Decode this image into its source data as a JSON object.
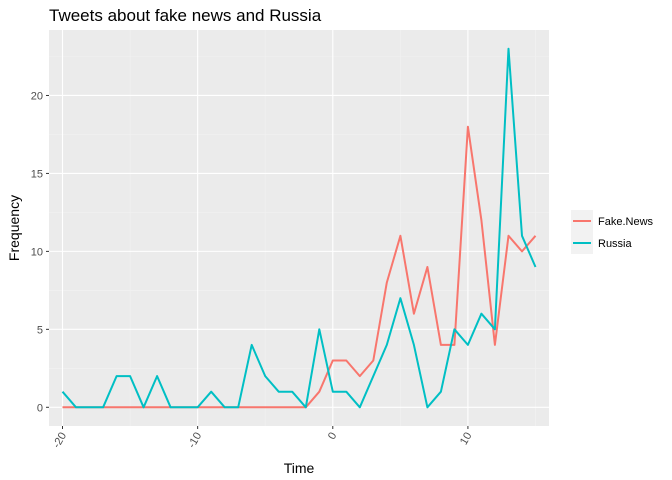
{
  "chart_data": {
    "type": "line",
    "title": "Tweets about fake news and Russia",
    "xlabel": "Time",
    "ylabel": "Frequency",
    "xlim": [
      -21,
      16
    ],
    "ylim": [
      -1.2,
      24.2
    ],
    "x_ticks": [
      -20,
      -10,
      0,
      10
    ],
    "x_minor_ticks": [
      -15,
      -5,
      5,
      15
    ],
    "y_ticks": [
      0,
      5,
      10,
      15,
      20
    ],
    "y_minor_ticks": [
      2.5,
      7.5,
      12.5,
      17.5,
      22.5
    ],
    "grid": true,
    "legend_position": "right",
    "x": [
      -20,
      -19,
      -18,
      -17,
      -16,
      -15,
      -14,
      -13,
      -12,
      -11,
      -10,
      -9,
      -8,
      -7,
      -6,
      -5,
      -4,
      -3,
      -2,
      -1,
      0,
      1,
      2,
      3,
      4,
      5,
      6,
      7,
      8,
      9,
      10,
      11,
      12,
      13,
      14,
      15
    ],
    "series": [
      {
        "name": "Fake.News",
        "color": "#F8766D",
        "values": [
          0,
          0,
          0,
          0,
          0,
          0,
          0,
          0,
          0,
          0,
          0,
          0,
          0,
          0,
          0,
          0,
          0,
          0,
          0,
          1,
          3,
          3,
          2,
          3,
          8,
          11,
          6,
          9,
          4,
          4,
          18,
          12,
          4,
          11,
          10,
          11
        ]
      },
      {
        "name": "Russia",
        "color": "#00BFC4",
        "values": [
          1,
          0,
          0,
          0,
          2,
          2,
          0,
          2,
          0,
          0,
          0,
          1,
          0,
          0,
          4,
          2,
          1,
          1,
          0,
          5,
          1,
          1,
          0,
          2,
          4,
          7,
          4,
          0,
          1,
          5,
          4,
          6,
          5,
          23,
          11,
          9
        ]
      }
    ]
  },
  "colors": {
    "panel_background": "#EBEBEB",
    "grid_major": "#FFFFFF",
    "grid_minor": "#F2F2F2"
  }
}
